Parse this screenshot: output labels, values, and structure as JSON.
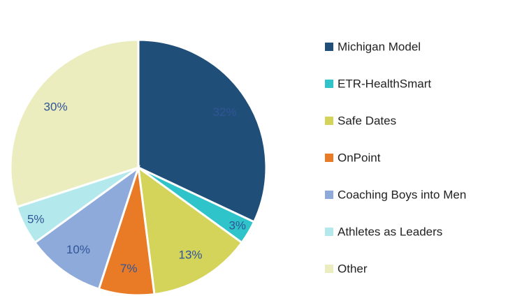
{
  "chart_data": {
    "type": "pie",
    "categories": [
      "Michigan Model",
      "ETR-HealthSmart",
      "Safe Dates",
      "OnPoint",
      "Coaching Boys into Men",
      "Athletes as Leaders",
      "Other"
    ],
    "values": [
      32,
      3,
      13,
      7,
      10,
      5,
      30
    ],
    "value_labels": [
      "32%",
      "3%",
      "13%",
      "7%",
      "10%",
      "5%",
      "30%"
    ],
    "colors": [
      "#1f4e79",
      "#2ec4c9",
      "#d4d35a",
      "#e97b26",
      "#8eaadb",
      "#b3e9ec",
      "#ebedbf"
    ],
    "legend": "right"
  }
}
